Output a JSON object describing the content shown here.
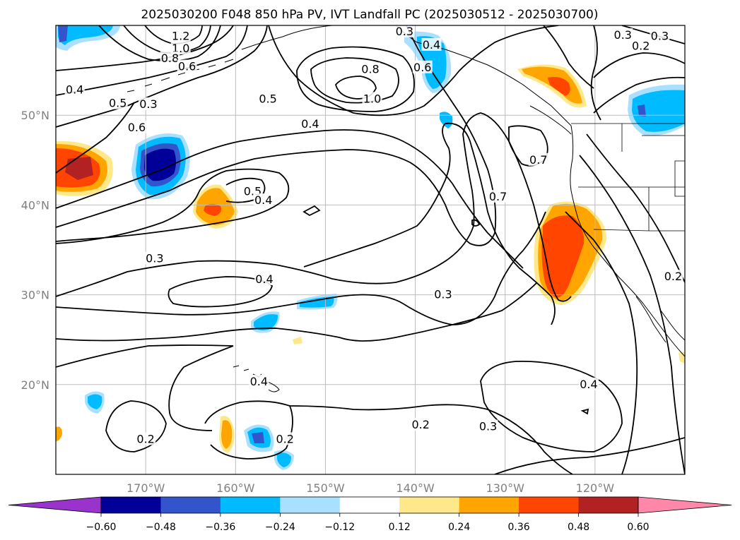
{
  "title": "2025030200 F048 850 hPa PV, IVT Landfall PC (2025030512 - 2025030700)",
  "map": {
    "lon_range": [
      -180,
      -110
    ],
    "lat_range": [
      10,
      60
    ],
    "lon_ticks": [
      {
        "value": -170,
        "label": "170°W"
      },
      {
        "value": -160,
        "label": "160°W"
      },
      {
        "value": -150,
        "label": "150°W"
      },
      {
        "value": -140,
        "label": "140°W"
      },
      {
        "value": -130,
        "label": "130°W"
      },
      {
        "value": -120,
        "label": "120°W"
      }
    ],
    "lat_ticks": [
      {
        "value": 20,
        "label": "20°N"
      },
      {
        "value": 30,
        "label": "30°N"
      },
      {
        "value": 40,
        "label": "40°N"
      },
      {
        "value": 50,
        "label": "50°N"
      }
    ],
    "grid": true,
    "gridline_color": "#bdbdbd"
  },
  "colorbar": {
    "orientation": "horizontal",
    "extend": "both",
    "levels": [
      -0.6,
      -0.48,
      -0.36,
      -0.24,
      -0.12,
      0.12,
      0.24,
      0.36,
      0.48,
      0.6
    ],
    "tick_labels": [
      "−0.60",
      "−0.48",
      "−0.36",
      "−0.24",
      "−0.12",
      "0.12",
      "0.24",
      "0.36",
      "0.48",
      "0.60"
    ],
    "colors": [
      "#9933cc",
      "#000099",
      "#3355cc",
      "#00bbff",
      "#aae0ff",
      "#ffffff",
      "#ffe88a",
      "#ffa500",
      "#ff4500",
      "#b22222",
      "#ff88aa"
    ]
  },
  "pv_contour_labels": [
    {
      "text": "1.2",
      "lon": -166.1,
      "lat": 58.8
    },
    {
      "text": "1.0",
      "lon": -166.1,
      "lat": 57.4
    },
    {
      "text": "0.8",
      "lon": -167.3,
      "lat": 56.3
    },
    {
      "text": "0.6",
      "lon": -165.4,
      "lat": 55.4
    },
    {
      "text": "0.4",
      "lon": -177.9,
      "lat": 52.8
    },
    {
      "text": "0.5",
      "lon": -173.1,
      "lat": 51.3
    },
    {
      "text": "0.3",
      "lon": -169.7,
      "lat": 51.2
    },
    {
      "text": "0.6",
      "lon": -171.0,
      "lat": 48.6
    },
    {
      "text": "0.5",
      "lon": -156.4,
      "lat": 51.8
    },
    {
      "text": "0.4",
      "lon": -151.7,
      "lat": 49.0
    },
    {
      "text": "0.8",
      "lon": -145.0,
      "lat": 55.1
    },
    {
      "text": "0.6",
      "lon": -139.2,
      "lat": 55.3
    },
    {
      "text": "1.0",
      "lon": -144.8,
      "lat": 51.8
    },
    {
      "text": "0.4",
      "lon": -138.2,
      "lat": 57.8
    },
    {
      "text": "0.3",
      "lon": -141.2,
      "lat": 59.3
    },
    {
      "text": "0.3",
      "lon": -116.9,
      "lat": 58.9
    },
    {
      "text": "0.2",
      "lon": -114.9,
      "lat": 57.7
    },
    {
      "text": "0.3",
      "lon": -112.8,
      "lat": 58.8
    },
    {
      "text": "0.7",
      "lon": -126.3,
      "lat": 45.0
    },
    {
      "text": "0.5",
      "lon": -158.1,
      "lat": 41.5
    },
    {
      "text": "0.4",
      "lon": -156.9,
      "lat": 40.5
    },
    {
      "text": "0.7",
      "lon": -130.8,
      "lat": 40.9
    },
    {
      "text": "0.3",
      "lon": -169.0,
      "lat": 34.0
    },
    {
      "text": "0.4",
      "lon": -156.8,
      "lat": 31.7
    },
    {
      "text": "0.3",
      "lon": -136.9,
      "lat": 30.0
    },
    {
      "text": "0.2",
      "lon": -111.3,
      "lat": 32.0
    },
    {
      "text": "0.4",
      "lon": -157.4,
      "lat": 20.3
    },
    {
      "text": "0.4",
      "lon": -120.7,
      "lat": 20.0
    },
    {
      "text": "0.2",
      "lon": -139.4,
      "lat": 15.5
    },
    {
      "text": "0.3",
      "lon": -131.9,
      "lat": 15.3
    },
    {
      "text": "0.2",
      "lon": -170.0,
      "lat": 13.9
    },
    {
      "text": "0.2",
      "lon": -154.5,
      "lat": 13.9
    }
  ]
}
